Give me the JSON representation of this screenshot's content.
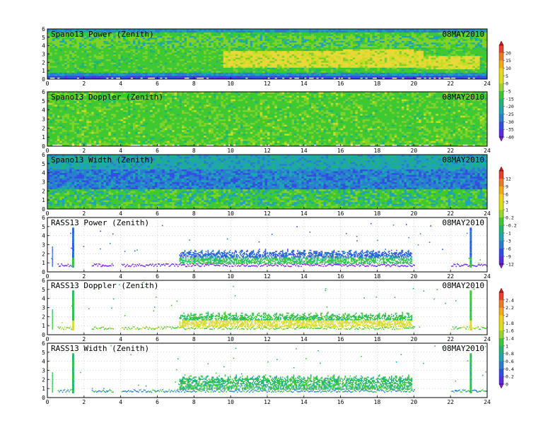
{
  "chart_data": [
    {
      "type": "heatmap",
      "title": "Spano13 Power (Zenith)",
      "date": "08MAY2010",
      "xlim": [
        0,
        24
      ],
      "ylim": [
        0,
        6
      ],
      "xticks": [
        0,
        2,
        4,
        6,
        8,
        10,
        12,
        14,
        16,
        18,
        20,
        22,
        24
      ],
      "yticks": [
        0,
        1,
        2,
        3,
        4,
        5,
        6
      ],
      "pattern": "power",
      "colorbar": "cb1"
    },
    {
      "type": "heatmap",
      "title": "Spano13 Doppler (Zenith)",
      "date": "08MAY2010",
      "xlim": [
        0,
        24
      ],
      "ylim": [
        0,
        6
      ],
      "xticks": [
        0,
        2,
        4,
        6,
        8,
        10,
        12,
        14,
        16,
        18,
        20,
        22,
        24
      ],
      "yticks": [
        0,
        1,
        2,
        3,
        4,
        5,
        6
      ],
      "pattern": "doppler",
      "colorbar": "cb1"
    },
    {
      "type": "heatmap",
      "title": "Spano13 Width (Zenith)",
      "date": "08MAY2010",
      "xlim": [
        0,
        24
      ],
      "ylim": [
        0,
        6
      ],
      "xticks": [
        0,
        2,
        4,
        6,
        8,
        10,
        12,
        14,
        16,
        18,
        20,
        22,
        24
      ],
      "yticks": [
        0,
        1,
        2,
        3,
        4,
        5,
        6
      ],
      "pattern": "width",
      "colorbar": "cb2"
    },
    {
      "type": "scatter",
      "title": "RASS13 Power (Zenith)",
      "date": "08MAY2010",
      "xlim": [
        0,
        24
      ],
      "ylim": [
        0,
        6
      ],
      "xticks": [
        0,
        2,
        4,
        6,
        8,
        10,
        12,
        14,
        16,
        18,
        20,
        22,
        24
      ],
      "yticks": [
        0,
        1,
        2,
        3,
        4,
        5,
        6
      ],
      "pattern": "rass_power",
      "colorbar": "cb2"
    },
    {
      "type": "scatter",
      "title": "RASS13 Doppler (Zenith)",
      "date": "08MAY2010",
      "xlim": [
        0,
        24
      ],
      "ylim": [
        0,
        6
      ],
      "xticks": [
        0,
        2,
        4,
        6,
        8,
        10,
        12,
        14,
        16,
        18,
        20,
        22,
        24
      ],
      "yticks": [
        0,
        1,
        2,
        3,
        4,
        5,
        6
      ],
      "pattern": "rass_doppler",
      "colorbar": "cb3"
    },
    {
      "type": "scatter",
      "title": "RASS13 Width (Zenith)",
      "date": "08MAY2010",
      "xlim": [
        0,
        24
      ],
      "ylim": [
        0,
        6
      ],
      "xticks": [
        0,
        2,
        4,
        6,
        8,
        10,
        12,
        14,
        16,
        18,
        20,
        22,
        24
      ],
      "yticks": [
        0,
        1,
        2,
        3,
        4,
        5,
        6
      ],
      "pattern": "rass_width",
      "colorbar": "cb3"
    }
  ],
  "colorbars": {
    "cb1": {
      "labels": [
        "20",
        "15",
        "10",
        "5",
        "0",
        "-5",
        "-15",
        "-20",
        "-25",
        "-30",
        "-35",
        "-40"
      ],
      "colors": [
        "#d7191c",
        "#e8402a",
        "#f07a1c",
        "#f5a81c",
        "#f2d21a",
        "#d7e21c",
        "#9ad62a",
        "#3ec832",
        "#1fb478",
        "#1ea4b4",
        "#2a7ed0",
        "#3050e0",
        "#5a2ce0",
        "#8a1ee0"
      ]
    },
    "cb2": {
      "labels": [
        "12",
        "9",
        "6",
        "3",
        "1",
        "0.2",
        "-0.2",
        "-1",
        "-3",
        "-6",
        "-9",
        "-12"
      ],
      "colors": [
        "#d7191c",
        "#e8402a",
        "#f07a1c",
        "#f5a81c",
        "#f2d21a",
        "#d7e21c",
        "#9ad62a",
        "#3ec832",
        "#1fb478",
        "#1ea4b4",
        "#2a7ed0",
        "#3050e0",
        "#5a2ce0",
        "#8a1ee0"
      ]
    },
    "cb3": {
      "labels": [
        "2.4",
        "2.2",
        "2",
        "1.8",
        "1.6",
        "1.4",
        "1",
        "0.8",
        "0.6",
        "0.4",
        "0.2",
        "0"
      ],
      "colors": [
        "#d7191c",
        "#e8402a",
        "#f07a1c",
        "#f5a81c",
        "#f2d21a",
        "#d7e21c",
        "#9ad62a",
        "#3ec832",
        "#1fb478",
        "#1ea4b4",
        "#2a7ed0",
        "#3050e0",
        "#5a2ce0",
        "#8a1ee0"
      ]
    }
  }
}
